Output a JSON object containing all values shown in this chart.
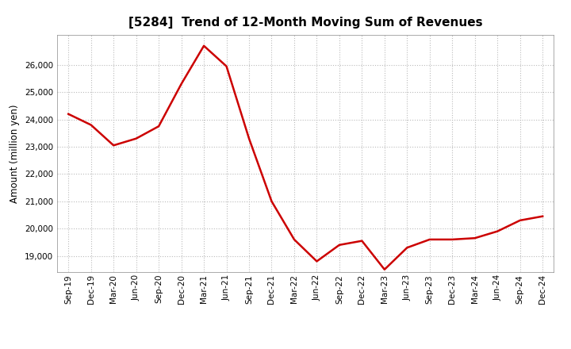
{
  "title": "[5284]  Trend of 12-Month Moving Sum of Revenues",
  "ylabel": "Amount (million yen)",
  "line_color": "#cc0000",
  "line_width": 1.8,
  "background_color": "#ffffff",
  "grid_color": "#bbbbbb",
  "x_labels": [
    "Sep-19",
    "Dec-19",
    "Mar-20",
    "Jun-20",
    "Sep-20",
    "Dec-20",
    "Mar-21",
    "Jun-21",
    "Sep-21",
    "Dec-21",
    "Mar-22",
    "Jun-22",
    "Sep-22",
    "Dec-22",
    "Mar-23",
    "Jun-23",
    "Sep-23",
    "Dec-23",
    "Mar-24",
    "Jun-24",
    "Sep-24",
    "Dec-24"
  ],
  "y_values": [
    24200,
    23800,
    23050,
    23300,
    23750,
    25300,
    26700,
    25950,
    23300,
    21000,
    19600,
    18800,
    19400,
    19550,
    18500,
    19300,
    19600,
    19600,
    19650,
    19900,
    20300,
    20450
  ],
  "ylim": [
    18400,
    27100
  ],
  "yticks": [
    19000,
    20000,
    21000,
    22000,
    23000,
    24000,
    25000,
    26000
  ]
}
